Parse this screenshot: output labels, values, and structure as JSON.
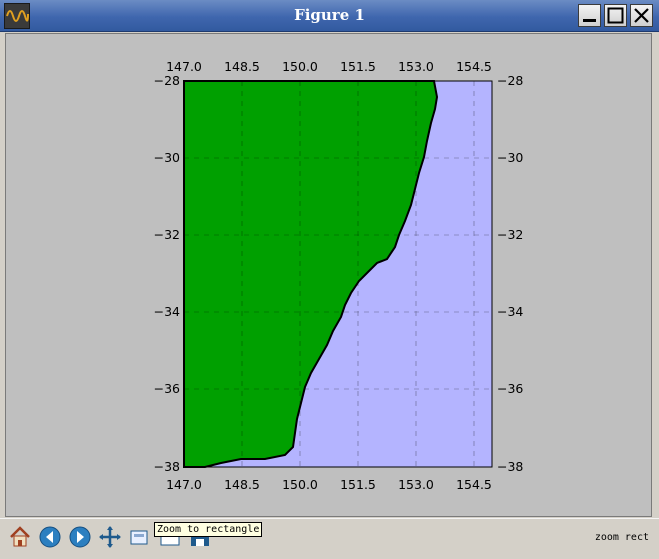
{
  "window": {
    "title": "Figure 1",
    "icon": "matplotlib-wave-icon",
    "controls": [
      "minimize-icon",
      "maximize-icon",
      "close-icon"
    ]
  },
  "figure": {
    "x_ticks": [
      "147.0",
      "148.5",
      "150.0",
      "151.5",
      "153.0",
      "154.5"
    ],
    "y_ticks": [
      "−28",
      "−30",
      "−32",
      "−34",
      "−36",
      "−38"
    ],
    "land_color": "#00a000",
    "sea_color": "#b4b4ff",
    "background_color": "#bfbfbf",
    "x_range": [
      147.0,
      155.0
    ],
    "y_range": [
      -38,
      -28
    ]
  },
  "toolbar": {
    "buttons": [
      {
        "name": "home",
        "icon": "home-icon"
      },
      {
        "name": "back",
        "icon": "back-arrow-icon"
      },
      {
        "name": "forward",
        "icon": "forward-arrow-icon"
      },
      {
        "name": "pan",
        "icon": "pan-icon"
      },
      {
        "name": "zoom",
        "icon": "zoom-icon"
      },
      {
        "name": "subplots",
        "icon": "subplots-icon"
      },
      {
        "name": "save",
        "icon": "save-icon"
      }
    ],
    "tooltip": "Zoom to rectangle",
    "mode": "zoom rect"
  }
}
